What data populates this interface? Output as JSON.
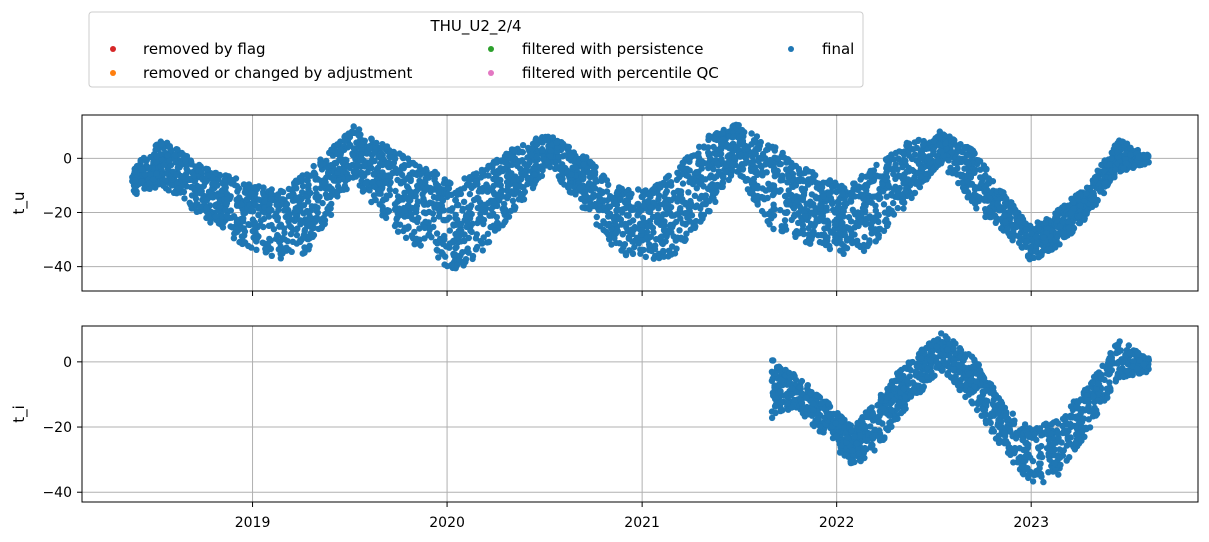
{
  "chart_data": {
    "type": "scatter",
    "legend": {
      "title": "THU_U2_2/4",
      "placement": "top-left, above plots",
      "entries": [
        {
          "label": "removed by flag",
          "color": "#d62728"
        },
        {
          "label": "filtered with persistence",
          "color": "#2ca02c"
        },
        {
          "label": "final",
          "color": "#1f77b4"
        },
        {
          "label": "removed or changed by adjustment",
          "color": "#ff7f0e"
        },
        {
          "label": "filtered with percentile QC",
          "color": "#e377c2"
        }
      ]
    },
    "x_ticks": [
      "2019",
      "2020",
      "2021",
      "2022",
      "2023"
    ],
    "xlim": [
      "2018-02-15",
      "2023-11-10"
    ],
    "grid": true,
    "panels": [
      {
        "ylabel": "t_u",
        "ylim": [
          -49,
          16
        ],
        "yticks": [
          "0",
          "−20",
          "−40"
        ],
        "color": "#1f77b4",
        "series_name": "final",
        "start": "2018-05-20",
        "end": "2023-08-10",
        "envelope_dates": [
          "2018-05-20",
          "2018-07-15",
          "2018-10-01",
          "2018-12-15",
          "2019-02-15",
          "2019-04-15",
          "2019-07-10",
          "2019-09-15",
          "2019-11-15",
          "2020-01-15",
          "2020-03-01",
          "2020-05-01",
          "2020-07-10",
          "2020-09-15",
          "2020-11-15",
          "2021-01-15",
          "2021-03-01",
          "2021-05-01",
          "2021-06-25",
          "2021-09-01",
          "2021-11-15",
          "2022-01-15",
          "2022-03-01",
          "2022-05-01",
          "2022-07-15",
          "2022-09-15",
          "2022-11-15",
          "2023-01-01",
          "2023-02-15",
          "2023-04-15",
          "2023-06-15",
          "2023-08-10"
        ],
        "envelope_low": [
          -14,
          -10,
          -22,
          -32,
          -38,
          -35,
          -8,
          -25,
          -34,
          -42,
          -36,
          -22,
          -3,
          -20,
          -35,
          -38,
          -36,
          -22,
          -4,
          -26,
          -32,
          -36,
          -34,
          -20,
          -2,
          -18,
          -28,
          -38,
          -34,
          -22,
          -5,
          -2
        ],
        "envelope_high": [
          -3,
          7,
          -3,
          -8,
          -12,
          -5,
          12,
          4,
          -3,
          -8,
          -5,
          4,
          9,
          1,
          -10,
          -12,
          -5,
          8,
          13,
          5,
          -5,
          -10,
          -5,
          5,
          10,
          3,
          -14,
          -25,
          -20,
          -10,
          7,
          1
        ]
      },
      {
        "ylabel": "t_i",
        "ylim": [
          -43,
          11
        ],
        "yticks": [
          "0",
          "−20",
          "−40"
        ],
        "color": "#1f77b4",
        "series_name": "final",
        "start": "2021-09-01",
        "end": "2023-08-10",
        "envelope_dates": [
          "2021-09-01",
          "2021-10-15",
          "2021-12-01",
          "2022-02-01",
          "2022-03-15",
          "2022-05-01",
          "2022-07-15",
          "2022-09-15",
          "2022-11-15",
          "2023-01-01",
          "2023-02-15",
          "2023-04-15",
          "2023-06-15",
          "2023-08-10"
        ],
        "envelope_low": [
          -18,
          -14,
          -22,
          -32,
          -28,
          -16,
          -3,
          -14,
          -28,
          -38,
          -36,
          -22,
          -5,
          -3
        ],
        "envelope_high": [
          1,
          -4,
          -10,
          -20,
          -12,
          -2,
          9,
          2,
          -14,
          -20,
          -18,
          -8,
          7,
          1
        ]
      }
    ]
  }
}
